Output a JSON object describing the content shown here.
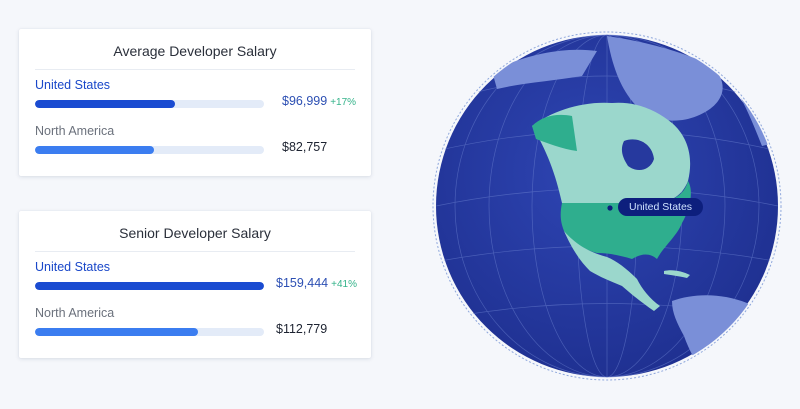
{
  "cards": [
    {
      "title": "Average Developer Salary",
      "rows": [
        {
          "label": "United States",
          "value": "$96,999",
          "change": "+17%",
          "fill": 0.61
        },
        {
          "label": "North America",
          "value": "$82,757",
          "change": "",
          "fill": 0.52
        }
      ]
    },
    {
      "title": "Senior Developer Salary",
      "rows": [
        {
          "label": "United States",
          "value": "$159,444",
          "change": "+41%",
          "fill": 1.0
        },
        {
          "label": "North America",
          "value": "$112,779",
          "change": "",
          "fill": 0.71
        }
      ]
    }
  ],
  "map": {
    "tooltip": "United States",
    "colors": {
      "ocean": "#26399e",
      "land": "#7a8fd8",
      "north_america": "#9bd7cc",
      "united_states": "#2fae8e",
      "accent": "#1a4bd1",
      "change_positive": "#34b38a"
    }
  }
}
